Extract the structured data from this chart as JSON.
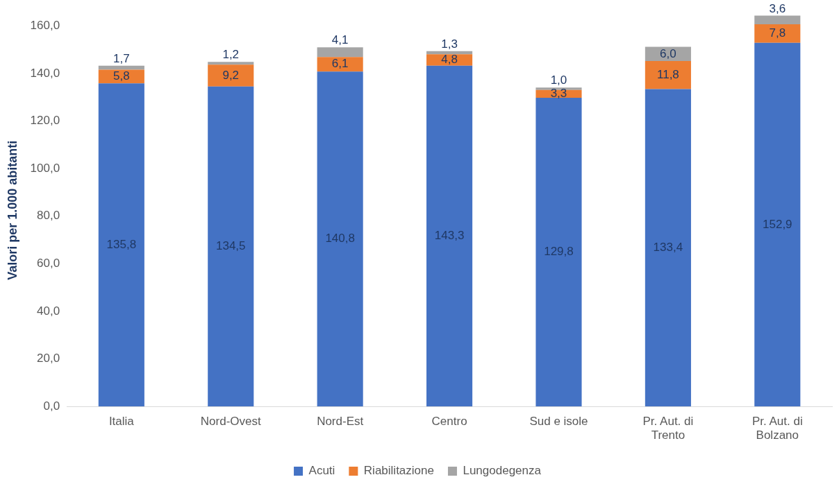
{
  "chart_data": {
    "type": "bar",
    "stacked": true,
    "ylabel": "Valori per 1.000 abitanti",
    "categories": [
      "Italia",
      "Nord-Ovest",
      "Nord-Est",
      "Centro",
      "Sud e isole",
      "Pr. Aut. di Trento",
      "Pr. Aut. di Bolzano"
    ],
    "series": [
      {
        "name": "Acuti",
        "color": "#4472c4",
        "values": [
          135.8,
          134.5,
          140.8,
          143.3,
          129.8,
          133.4,
          152.9
        ],
        "value_labels": [
          "135,8",
          "134,5",
          "140,8",
          "143,3",
          "129,8",
          "133,4",
          "152,9"
        ]
      },
      {
        "name": "Riabilitazione",
        "color": "#ed7d31",
        "values": [
          5.8,
          9.2,
          6.1,
          4.8,
          3.3,
          11.8,
          7.8
        ],
        "value_labels": [
          "5,8",
          "9,2",
          "6,1",
          "4,8",
          "3,3",
          "11,8",
          "7,8"
        ]
      },
      {
        "name": "Lungodegenza",
        "color": "#a5a5a5",
        "values": [
          1.7,
          1.2,
          4.1,
          1.3,
          1.0,
          6.0,
          3.6
        ],
        "value_labels": [
          "1,7",
          "1,2",
          "4,1",
          "1,3",
          "1,0",
          "6,0",
          "3,6"
        ]
      }
    ],
    "ylim": [
      0,
      165
    ],
    "yticks": [
      {
        "value": 0,
        "label": "0,0"
      },
      {
        "value": 20,
        "label": "20,0"
      },
      {
        "value": 40,
        "label": "40,0"
      },
      {
        "value": 60,
        "label": "60,0"
      },
      {
        "value": 80,
        "label": "80,0"
      },
      {
        "value": 100,
        "label": "100,0"
      },
      {
        "value": 120,
        "label": "120,0"
      },
      {
        "value": 140,
        "label": "140,0"
      },
      {
        "value": 160,
        "label": "160,0"
      }
    ],
    "grid": false,
    "legend": "bottom"
  }
}
